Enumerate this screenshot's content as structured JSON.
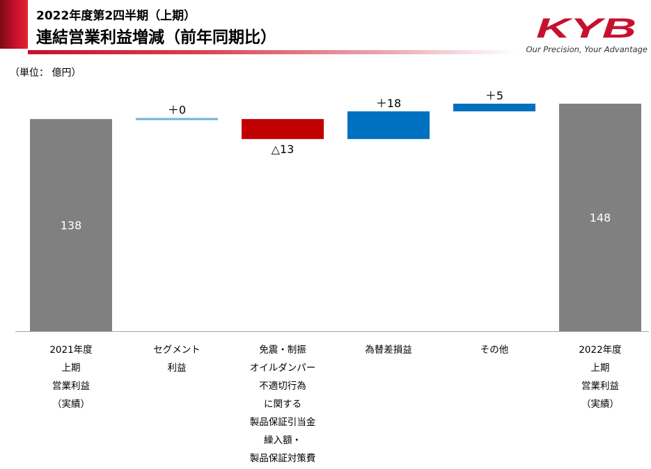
{
  "header": {
    "subtitle": "2022年度第2四半期（上期）",
    "title": "連結営業利益増減（前年同期比）",
    "tagline": "Our Precision, Your Advantage",
    "logo_text": "KYB"
  },
  "unit_label": "（単位： 億円）",
  "colors": {
    "total": "#808080",
    "increase": "#0070c0",
    "zero": "#6fb0dc",
    "decrease": "#c00000",
    "brand": "#c8102e"
  },
  "chart_data": {
    "type": "bar",
    "subtype": "waterfall",
    "ylim": [
      0,
      148
    ],
    "categories": [
      "2021年度\n上期\n営業利益\n（実績）",
      "セグメント\n利益",
      "免震・制振\nオイルダンパー\n不適切行為\nに関する\n製品保証引当金\n繰入額・\n製品保証対策費",
      "為替差損益",
      "その他",
      "2022年度\n上期\n営業利益\n（実績）"
    ],
    "steps": [
      {
        "kind": "total",
        "value": 138,
        "label": "138"
      },
      {
        "kind": "delta",
        "value": 0,
        "label": "＋0"
      },
      {
        "kind": "delta",
        "value": -13,
        "label": "△13"
      },
      {
        "kind": "delta",
        "value": 18,
        "label": "＋18"
      },
      {
        "kind": "delta",
        "value": 5,
        "label": "＋5"
      },
      {
        "kind": "total",
        "value": 148,
        "label": "148"
      }
    ],
    "grid": false,
    "legend": "none"
  }
}
